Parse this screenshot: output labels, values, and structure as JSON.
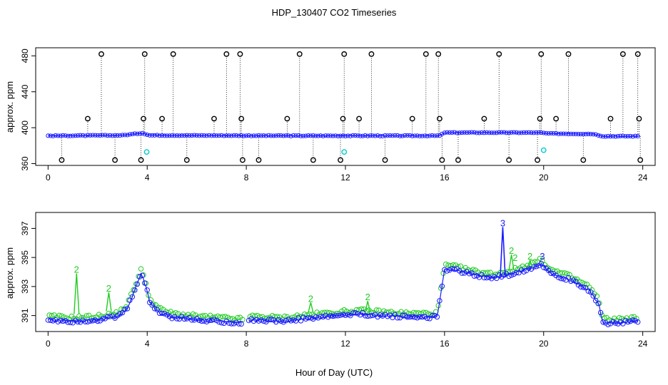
{
  "figure": {
    "title": "HDP_130407  CO2 Timeseries",
    "xlabel": "Hour of Day (UTC)"
  },
  "colors": {
    "blue": "#1a1aff",
    "green": "#22cc22",
    "cyan": "#00cccc",
    "black": "#000000"
  },
  "chart_data": [
    {
      "type": "scatter",
      "ylabel": "approx. ppm",
      "xlim": [
        -0.5,
        24.5
      ],
      "ylim": [
        358,
        489
      ],
      "xticks": [
        0,
        4,
        8,
        12,
        16,
        20,
        24
      ],
      "yticks": [
        360,
        400,
        440,
        480
      ],
      "grid": false,
      "baseline": [
        {
          "x": 0.0,
          "y": 391.0
        },
        {
          "x": 3.0,
          "y": 391.5
        },
        {
          "x": 3.8,
          "y": 394.0
        },
        {
          "x": 4.1,
          "y": 391.5
        },
        {
          "x": 10.0,
          "y": 391.0
        },
        {
          "x": 15.8,
          "y": 391.0
        },
        {
          "x": 16.0,
          "y": 394.5
        },
        {
          "x": 19.8,
          "y": 394.5
        },
        {
          "x": 20.2,
          "y": 393.5
        },
        {
          "x": 22.0,
          "y": 393.0
        },
        {
          "x": 22.4,
          "y": 390.5
        },
        {
          "x": 23.8,
          "y": 390.5
        }
      ],
      "high_outliers": [
        2.15,
        3.9,
        5.05,
        7.2,
        7.75,
        10.15,
        11.95,
        13.05,
        15.25,
        15.75,
        18.2,
        19.9,
        21.0,
        23.2,
        23.8
      ],
      "high_outlier_value": 482,
      "mid_outliers": [
        1.6,
        3.85,
        4.6,
        6.7,
        7.8,
        9.65,
        11.9,
        12.55,
        14.7,
        15.8,
        17.6,
        19.85,
        20.5,
        22.7,
        23.85
      ],
      "mid_outlier_value": 410,
      "low_outliers": [
        0.55,
        2.7,
        3.75,
        5.6,
        7.85,
        8.5,
        10.7,
        11.8,
        13.6,
        15.9,
        16.55,
        18.6,
        19.75,
        21.6,
        23.9
      ],
      "low_outlier_value": 364,
      "cyan_points": [
        {
          "x": 3.98,
          "y": 373
        },
        {
          "x": 11.95,
          "y": 373
        },
        {
          "x": 20.0,
          "y": 375
        }
      ]
    },
    {
      "type": "scatter",
      "ylabel": "approx. ppm",
      "xlim": [
        -0.5,
        24.5
      ],
      "ylim": [
        389.9,
        398.1
      ],
      "xticks": [
        0,
        4,
        8,
        12,
        16,
        20,
        24
      ],
      "yticks": [
        391,
        393,
        395,
        397
      ],
      "grid": false,
      "series_blue": [
        {
          "x": 0.0,
          "y": 390.7
        },
        {
          "x": 1.0,
          "y": 390.6
        },
        {
          "x": 2.0,
          "y": 390.7
        },
        {
          "x": 2.8,
          "y": 390.9
        },
        {
          "x": 3.2,
          "y": 391.5
        },
        {
          "x": 3.5,
          "y": 392.8
        },
        {
          "x": 3.75,
          "y": 393.9
        },
        {
          "x": 3.95,
          "y": 393.0
        },
        {
          "x": 4.1,
          "y": 391.9
        },
        {
          "x": 4.5,
          "y": 391.2
        },
        {
          "x": 5.0,
          "y": 390.9
        },
        {
          "x": 6.0,
          "y": 390.7
        },
        {
          "x": 7.0,
          "y": 390.6
        },
        {
          "x": 7.8,
          "y": 390.5
        },
        {
          "x": 8.2,
          "y": 390.7
        },
        {
          "x": 9.5,
          "y": 390.6
        },
        {
          "x": 10.5,
          "y": 390.8
        },
        {
          "x": 11.8,
          "y": 391.0
        },
        {
          "x": 12.5,
          "y": 391.1
        },
        {
          "x": 13.5,
          "y": 391.0
        },
        {
          "x": 14.5,
          "y": 390.9
        },
        {
          "x": 15.7,
          "y": 390.9
        },
        {
          "x": 16.0,
          "y": 394.2
        },
        {
          "x": 16.5,
          "y": 394.1
        },
        {
          "x": 17.2,
          "y": 393.8
        },
        {
          "x": 18.0,
          "y": 393.6
        },
        {
          "x": 18.8,
          "y": 393.9
        },
        {
          "x": 19.5,
          "y": 394.3
        },
        {
          "x": 19.9,
          "y": 394.6
        },
        {
          "x": 20.3,
          "y": 393.9
        },
        {
          "x": 21.0,
          "y": 393.5
        },
        {
          "x": 21.8,
          "y": 392.8
        },
        {
          "x": 22.2,
          "y": 391.9
        },
        {
          "x": 22.4,
          "y": 390.5
        },
        {
          "x": 23.0,
          "y": 390.5
        },
        {
          "x": 23.8,
          "y": 390.6
        }
      ],
      "gap_blue": [
        7.85,
        8.05
      ],
      "blue_spike": {
        "x": 18.35,
        "y": 397.1,
        "base": 393.7
      },
      "green_spikes": [
        {
          "x": 1.15,
          "y": 393.9,
          "base": 391.1
        },
        {
          "x": 2.45,
          "y": 392.6,
          "base": 391.3
        },
        {
          "x": 10.6,
          "y": 391.9,
          "base": 391.2
        },
        {
          "x": 12.9,
          "y": 392.0,
          "base": 391.2
        },
        {
          "x": 18.7,
          "y": 395.2,
          "base": 394.1
        },
        {
          "x": 19.45,
          "y": 394.8,
          "base": 394.3
        }
      ],
      "text_labels": [
        {
          "text": "2",
          "x": 1.15,
          "y": 393.9,
          "color": "green"
        },
        {
          "text": "2",
          "x": 2.45,
          "y": 392.6,
          "color": "green"
        },
        {
          "text": "2",
          "x": 10.6,
          "y": 391.9,
          "color": "green"
        },
        {
          "text": "2",
          "x": 12.9,
          "y": 392.0,
          "color": "green"
        },
        {
          "text": "2",
          "x": 18.7,
          "y": 395.2,
          "color": "green"
        },
        {
          "text": "2",
          "x": 18.85,
          "y": 394.7,
          "color": "green"
        },
        {
          "text": "2",
          "x": 19.45,
          "y": 394.8,
          "color": "green"
        },
        {
          "text": "3",
          "x": 18.35,
          "y": 397.1,
          "color": "blue"
        },
        {
          "text": "3",
          "x": 19.95,
          "y": 394.8,
          "color": "blue"
        }
      ]
    }
  ]
}
